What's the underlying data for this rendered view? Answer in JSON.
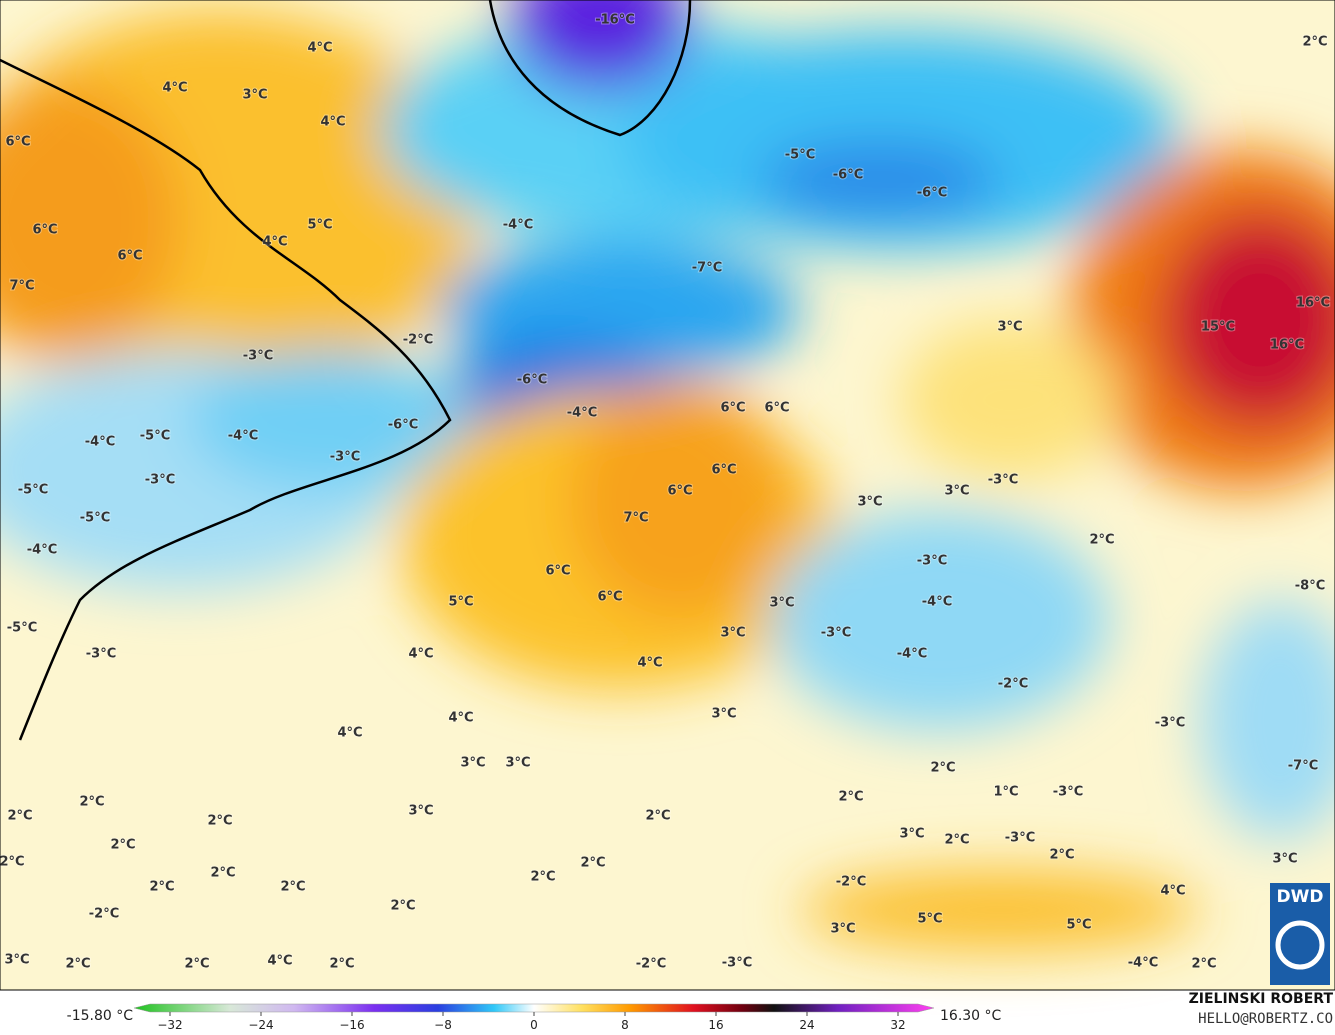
{
  "map": {
    "labels": [
      "-16°C",
      "2°C",
      "4°C",
      "4°C",
      "3°C",
      "4°C",
      "6°C",
      "-5°C",
      "-6°C",
      "-6°C",
      "-4°C",
      "5°C",
      "6°C",
      "4°C",
      "6°C",
      "-7°C",
      "7°C",
      "3°C",
      "15°C",
      "16°C",
      "16°C",
      "-2°C",
      "-3°C",
      "-6°C",
      "6°C",
      "6°C",
      "-4°C",
      "-6°C",
      "-5°C",
      "-4°C",
      "-4°C",
      "6°C",
      "-3°C",
      "-3°C",
      "-3°C",
      "3°C",
      "6°C",
      "3°C",
      "-5°C",
      "-5°C",
      "7°C",
      "2°C",
      "-4°C",
      "-3°C",
      "6°C",
      "-8°C",
      "5°C",
      "6°C",
      "3°C",
      "-4°C",
      "-5°C",
      "3°C",
      "-3°C",
      "-3°C",
      "4°C",
      "-4°C",
      "4°C",
      "-2°C",
      "3°C",
      "4°C",
      "-3°C",
      "4°C",
      "3°C",
      "3°C",
      "2°C",
      "-7°C",
      "1°C",
      "-3°C",
      "2°C",
      "2°C",
      "3°C",
      "2°C",
      "2°C",
      "2°C",
      "3°C",
      "-3°C",
      "2°C",
      "2°C",
      "2°C",
      "3°C",
      "2°C",
      "2°C",
      "2°C",
      "-2°C",
      "2°C",
      "2°C",
      "2°C",
      "4°C",
      "-2°C",
      "2°C",
      "5°C",
      "5°C",
      "3°C",
      "3°C",
      "2°C",
      "2°C",
      "4°C",
      "2°C",
      "-2°C",
      "-3°C",
      "-4°C",
      "2°C"
    ],
    "logo": "DWD",
    "credit": {
      "name": "ZIELINSKI ROBERT",
      "contact": "HELLO@ROBERTZ.CO"
    },
    "colorbar": {
      "min_label": "-15.80 °C",
      "max_label": "16.30 °C",
      "ticks": [
        {
          "value": -32,
          "label": "−32"
        },
        {
          "value": -24,
          "label": "−24"
        },
        {
          "value": -16,
          "label": "−16"
        },
        {
          "value": -8,
          "label": "−8"
        },
        0,
        8,
        16,
        24,
        32
      ]
    }
  }
}
